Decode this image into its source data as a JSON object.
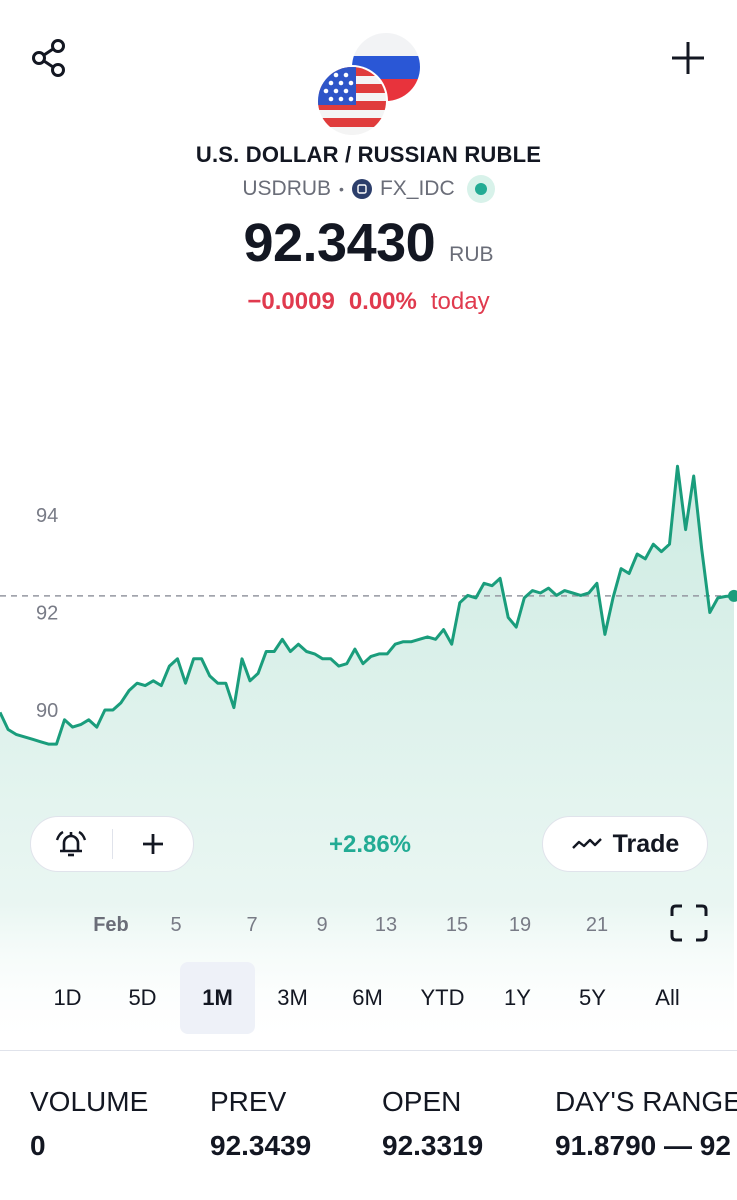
{
  "header": {
    "pair_name": "U.S. DOLLAR / RUSSIAN RUBLE",
    "symbol": "USDRUB",
    "separator": "•",
    "source": "FX_IDC",
    "price": "92.3430",
    "currency": "RUB",
    "change_abs": "−0.0009",
    "change_pct": "0.00%",
    "change_period": "today"
  },
  "icons": {
    "share": "share-icon",
    "add": "plus-icon",
    "alert": "alarm-clock-icon",
    "trade": "trend-icon",
    "fullscreen": "expand-corners-icon"
  },
  "controls": {
    "period_change": "+2.86%",
    "trade_label": "Trade"
  },
  "periods": [
    "1D",
    "5D",
    "1M",
    "3M",
    "6M",
    "YTD",
    "1Y",
    "5Y",
    "All"
  ],
  "active_period": "1M",
  "stats": [
    {
      "label": "VOLUME",
      "value": "0"
    },
    {
      "label": "PREV",
      "value": "92.3439"
    },
    {
      "label": "OPEN",
      "value": "92.3319"
    },
    {
      "label": "DAY'S RANGE",
      "value": "91.8790 — 92"
    }
  ],
  "colors": {
    "line": "#1a9d7c",
    "fill_top": "#cdebe2",
    "negative": "#e03a4e",
    "positive": "#22ab94"
  },
  "chart_data": {
    "type": "area",
    "y_ticks": [
      "94",
      "92",
      "90"
    ],
    "x_ticks": [
      "Feb",
      "5",
      "7",
      "9",
      "13",
      "15",
      "19",
      "21"
    ],
    "ylim": [
      87.5,
      96
    ],
    "reference_line": 92.34,
    "series": [
      {
        "values": [
          89.95,
          89.6,
          89.5,
          89.45,
          89.4,
          89.35,
          89.3,
          89.3,
          89.8,
          89.65,
          89.7,
          89.8,
          89.65,
          90.0,
          90.0,
          90.15,
          90.4,
          90.55,
          90.5,
          90.6,
          90.5,
          90.9,
          91.05,
          90.55,
          91.05,
          91.05,
          90.7,
          90.55,
          90.55,
          90.05,
          91.05,
          90.6,
          90.75,
          91.2,
          91.2,
          91.45,
          91.2,
          91.35,
          91.2,
          91.15,
          91.05,
          91.05,
          90.9,
          90.95,
          91.25,
          90.95,
          91.1,
          91.15,
          91.15,
          91.35,
          91.4,
          91.4,
          91.45,
          91.5,
          91.45,
          91.65,
          91.35,
          92.2,
          92.35,
          92.3,
          92.6,
          92.55,
          92.7,
          91.9,
          91.7,
          92.3,
          92.45,
          92.4,
          92.5,
          92.35,
          92.45,
          92.4,
          92.35,
          92.4,
          92.6,
          91.55,
          92.3,
          92.9,
          92.8,
          93.2,
          93.1,
          93.4,
          93.25,
          93.4,
          95.0,
          93.7,
          94.8,
          93.3,
          92.0,
          92.3,
          92.33,
          92.34
        ]
      }
    ]
  }
}
